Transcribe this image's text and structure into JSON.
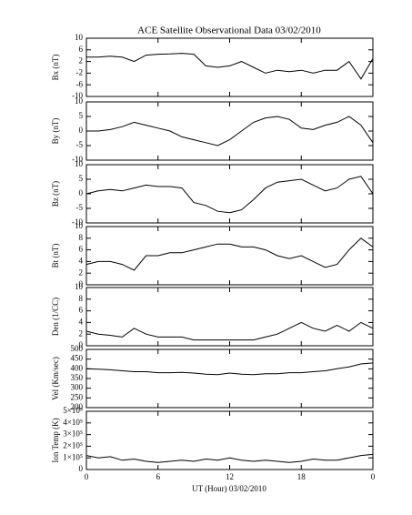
{
  "title": "ACE Satellite Observational Data   03/02/2010",
  "xlabel": "UT (Hour)   03/02/2010",
  "chart_data": [
    {
      "type": "line",
      "ylabel": "Bx (nT)",
      "color": "#000000",
      "x": [
        0,
        1,
        2,
        3,
        4,
        5,
        6,
        7,
        8,
        9,
        10,
        11,
        12,
        13,
        14,
        15,
        16,
        17,
        18,
        19,
        20,
        21,
        22,
        23,
        24
      ],
      "values": [
        3.5,
        3.5,
        3.8,
        3.5,
        2,
        4.2,
        4.5,
        4.6,
        4.8,
        4.5,
        0.5,
        0,
        0.5,
        2,
        0,
        -2,
        -1,
        -1.5,
        -1,
        -2,
        -1,
        -1,
        2,
        -4,
        3
      ],
      "xlim": [
        0,
        24
      ],
      "xticks": [
        0,
        6,
        12,
        18,
        {
          "value": 24,
          "label": "0"
        }
      ],
      "ylim": [
        -10,
        10
      ],
      "yticks": [
        -10,
        -6,
        -2,
        2,
        6,
        10
      ]
    },
    {
      "type": "line",
      "ylabel": "By (nT)",
      "color": "#000000",
      "x": [
        0,
        1,
        2,
        3,
        4,
        5,
        6,
        7,
        8,
        9,
        10,
        11,
        12,
        13,
        14,
        15,
        16,
        17,
        18,
        19,
        20,
        21,
        22,
        23,
        24
      ],
      "values": [
        0,
        0,
        0.5,
        1.5,
        3,
        2,
        1,
        0,
        -2,
        -3,
        -4,
        -5,
        -3,
        0,
        3,
        4.5,
        5,
        4,
        1,
        0.5,
        2,
        3,
        5,
        2,
        -4
      ],
      "xlim": [
        0,
        24
      ],
      "xticks": [
        0,
        6,
        12,
        18,
        {
          "value": 24,
          "label": "0"
        }
      ],
      "ylim": [
        -10,
        10
      ],
      "yticks": [
        -10,
        -5,
        0,
        5,
        10
      ]
    },
    {
      "type": "line",
      "ylabel": "Bz (nT)",
      "color": "#000000",
      "x": [
        0,
        1,
        2,
        3,
        4,
        5,
        6,
        7,
        8,
        9,
        10,
        11,
        12,
        13,
        14,
        15,
        16,
        17,
        18,
        19,
        20,
        21,
        22,
        23,
        24
      ],
      "values": [
        0,
        1,
        1.5,
        1,
        2,
        3,
        2.5,
        2.5,
        2,
        -3,
        -4,
        -6,
        -6.5,
        -5.5,
        -2,
        2,
        4,
        4.5,
        5,
        3,
        1,
        2,
        5,
        6,
        0
      ],
      "xlim": [
        0,
        24
      ],
      "xticks": [
        0,
        6,
        12,
        18,
        {
          "value": 24,
          "label": "0"
        }
      ],
      "ylim": [
        -10,
        10
      ],
      "yticks": [
        -10,
        -5,
        0,
        5,
        10
      ]
    },
    {
      "type": "line",
      "ylabel": "Bt (nT)",
      "color": "#000000",
      "x": [
        0,
        1,
        2,
        3,
        4,
        5,
        6,
        7,
        8,
        9,
        10,
        11,
        12,
        13,
        14,
        15,
        16,
        17,
        18,
        19,
        20,
        21,
        22,
        23,
        24
      ],
      "values": [
        3.5,
        4,
        4,
        3.5,
        2.5,
        5,
        5,
        5.5,
        5.5,
        6,
        6.5,
        7,
        7,
        6.5,
        6.5,
        6,
        5,
        4.5,
        5,
        4,
        3,
        3.5,
        6,
        8,
        6.5
      ],
      "xlim": [
        0,
        24
      ],
      "xticks": [
        0,
        6,
        12,
        18,
        {
          "value": 24,
          "label": "0"
        }
      ],
      "ylim": [
        0,
        10
      ],
      "yticks": [
        0,
        2,
        4,
        6,
        8,
        10
      ]
    },
    {
      "type": "line",
      "ylabel": "Den (1/CC)",
      "color": "#000000",
      "x": [
        0,
        1,
        2,
        3,
        4,
        5,
        6,
        7,
        8,
        9,
        10,
        11,
        12,
        13,
        14,
        15,
        16,
        17,
        18,
        19,
        20,
        21,
        22,
        23,
        24
      ],
      "values": [
        2.5,
        2,
        1.8,
        1.5,
        3,
        2,
        1.5,
        1.5,
        1.5,
        1,
        1,
        1,
        1,
        1,
        1,
        1.5,
        2,
        3,
        4,
        3,
        2.5,
        3.5,
        2.5,
        4,
        3
      ],
      "xlim": [
        0,
        24
      ],
      "xticks": [
        0,
        6,
        12,
        18,
        {
          "value": 24,
          "label": "0"
        }
      ],
      "ylim": [
        0,
        10
      ],
      "yticks": [
        0,
        2,
        4,
        6,
        8,
        10
      ]
    },
    {
      "type": "line",
      "ylabel": "Vel (Km/sec)",
      "color": "#000000",
      "x": [
        0,
        1,
        2,
        3,
        4,
        5,
        6,
        7,
        8,
        9,
        10,
        11,
        12,
        13,
        14,
        15,
        16,
        17,
        18,
        19,
        20,
        21,
        22,
        23,
        24
      ],
      "values": [
        400,
        398,
        395,
        390,
        385,
        385,
        380,
        380,
        382,
        378,
        372,
        370,
        378,
        372,
        370,
        375,
        375,
        380,
        380,
        385,
        390,
        400,
        410,
        425,
        430
      ],
      "xlim": [
        0,
        24
      ],
      "xticks": [
        0,
        6,
        12,
        18,
        {
          "value": 24,
          "label": "0"
        }
      ],
      "ylim": [
        200,
        500
      ],
      "yticks": [
        200,
        250,
        300,
        350,
        400,
        450,
        500
      ]
    },
    {
      "type": "line",
      "ylabel": "Ion Temp (K)",
      "color": "#000000",
      "x": [
        0,
        1,
        2,
        3,
        4,
        5,
        6,
        7,
        8,
        9,
        10,
        11,
        12,
        13,
        14,
        15,
        16,
        17,
        18,
        19,
        20,
        21,
        22,
        23,
        24
      ],
      "values": [
        120000,
        100000,
        110000,
        80000,
        90000,
        70000,
        60000,
        70000,
        80000,
        70000,
        90000,
        80000,
        100000,
        80000,
        70000,
        80000,
        70000,
        60000,
        70000,
        90000,
        80000,
        80000,
        100000,
        120000,
        130000
      ],
      "xlim": [
        0,
        24
      ],
      "xticks": [
        0,
        6,
        12,
        18,
        {
          "value": 24,
          "label": "0"
        }
      ],
      "ylim": [
        0,
        500000
      ],
      "yticks": [
        0,
        {
          "value": 100000,
          "label": "1×10⁵"
        },
        {
          "value": 200000,
          "label": "2×10⁵"
        },
        {
          "value": 300000,
          "label": "3×10⁵"
        },
        {
          "value": 400000,
          "label": "4×10⁵"
        },
        {
          "value": 500000,
          "label": "5×10⁵"
        }
      ]
    }
  ]
}
